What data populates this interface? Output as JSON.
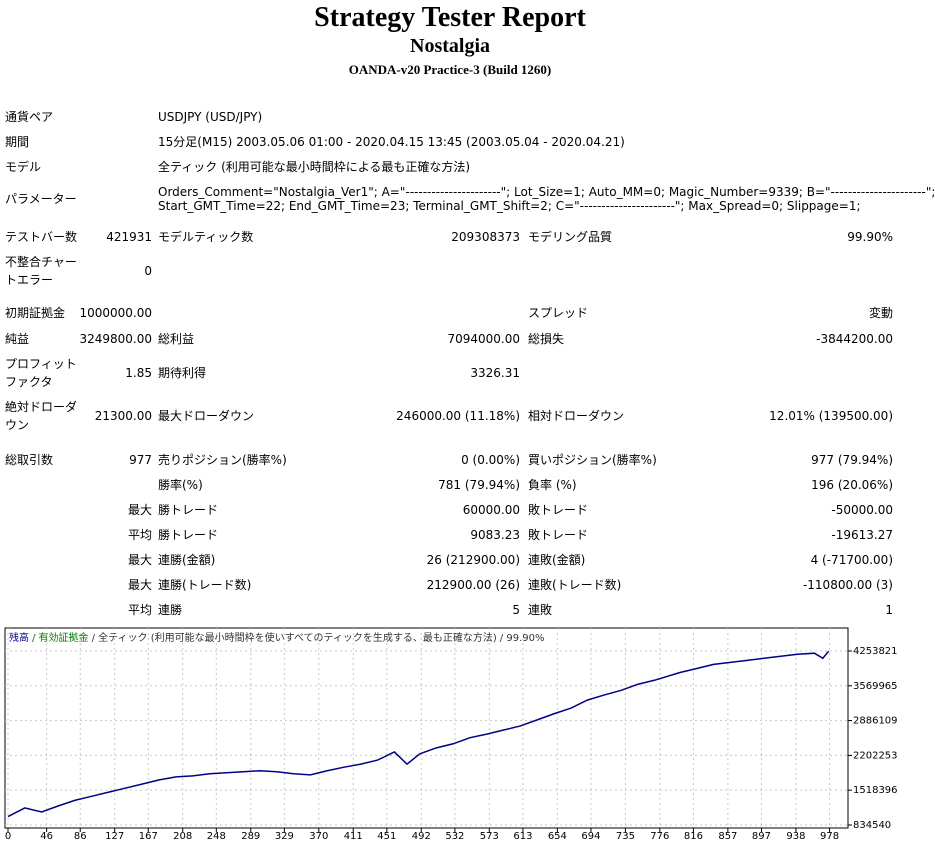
{
  "header": {
    "title": "Strategy Tester Report",
    "subtitle": "Nostalgia",
    "server": "OANDA-v20 Practice-3 (Build 1260)"
  },
  "report": {
    "rows": [
      {
        "label": "通貨ペア",
        "text": [
          "USDJPY (USD/JPY)"
        ]
      },
      {
        "label": "期間",
        "text": [
          "15分足(M15) 2003.05.06 01:00 - 2020.04.15 13:45 (2003.05.04 - 2020.04.21)"
        ]
      },
      {
        "label": "モデル",
        "text": [
          "全ティック (利用可能な最小時間枠による最も正確な方法)"
        ]
      },
      {
        "label": "パラメーター",
        "text": [
          "Orders_Comment=\"Nostalgia_Ver1\"; A=\"----------------------\"; Lot_Size=1; Auto_MM=0; Magic_Number=9339; B=\"----------------------\";",
          "Start_GMT_Time=22; End_GMT_Time=23; Terminal_GMT_Shift=2; C=\"----------------------\"; Max_Spread=0; Slippage=1;"
        ]
      },
      {
        "label": "テストバー数",
        "value": "421931",
        "label2": "モデルティック数",
        "value2": "209308373",
        "label3": "モデリング品質",
        "value3": "99.90%"
      },
      {
        "label": "不整合チャートエラー",
        "value": "0"
      },
      {
        "label": "初期証拠金",
        "value": "1000000.00",
        "label3": "スプレッド",
        "value3": "変動"
      },
      {
        "label": "純益",
        "value": "3249800.00",
        "label2": "総利益",
        "value2": "7094000.00",
        "label3": "総損失",
        "value3": "-3844200.00"
      },
      {
        "label": "プロフィットファクタ",
        "value": "1.85",
        "label2": "期待利得",
        "value2": "3326.31"
      },
      {
        "label": "絶対ドローダウン",
        "value": "21300.00",
        "label2": "最大ドローダウン",
        "value2": "246000.00 (11.18%)",
        "label3": "相対ドローダウン",
        "value3": "12.01% (139500.00)"
      },
      {
        "label": "総取引数",
        "value": "977",
        "label2": "売りポジション(勝率%)",
        "value2": "0 (0.00%)",
        "label3": "買いポジション(勝率%)",
        "value3": "977 (79.94%)"
      },
      {
        "label2": "勝率(%)",
        "value2": "781 (79.94%)",
        "label3": "負率 (%)",
        "value3": "196 (20.06%)"
      },
      {
        "qualifier": "最大",
        "label2": "勝トレード",
        "value2": "60000.00",
        "label3": "敗トレード",
        "value3": "-50000.00"
      },
      {
        "qualifier": "平均",
        "label2": "勝トレード",
        "value2": "9083.23",
        "label3": "敗トレード",
        "value3": "-19613.27"
      },
      {
        "qualifier": "最大",
        "label2": "連勝(金額)",
        "value2": "26 (212900.00)",
        "label3": "連敗(金額)",
        "value3": "4 (-71700.00)"
      },
      {
        "qualifier": "最大",
        "label2": "連勝(トレード数)",
        "value2": "212900.00 (26)",
        "label3": "連敗(トレード数)",
        "value3": "-110800.00 (3)"
      },
      {
        "qualifier": "平均",
        "label2": "連勝",
        "value2": "5",
        "label3": "連敗",
        "value3": "1"
      }
    ]
  },
  "chart_data": {
    "type": "line",
    "legend_text": [
      "/ 有効証拠金",
      "/ 全ティック (利用可能な最小時間枠を使いすべてのティックを生成する、最も正確な方法)",
      "/ 99.90%"
    ],
    "x": [
      0,
      20,
      40,
      60,
      80,
      100,
      120,
      140,
      160,
      180,
      200,
      220,
      240,
      260,
      280,
      300,
      320,
      340,
      360,
      380,
      400,
      420,
      440,
      460,
      475,
      490,
      510,
      530,
      550,
      570,
      590,
      610,
      630,
      650,
      670,
      690,
      710,
      730,
      750,
      770,
      800,
      820,
      840,
      860,
      880,
      900,
      920,
      940,
      960,
      970,
      977
    ],
    "series": [
      {
        "name": "残高",
        "color": "#00008b",
        "values": [
          1000000,
          1170000,
          1090000,
          1210000,
          1320000,
          1400000,
          1480000,
          1560000,
          1640000,
          1720000,
          1780000,
          1800000,
          1840000,
          1860000,
          1880000,
          1900000,
          1880000,
          1840000,
          1820000,
          1900000,
          1970000,
          2030000,
          2110000,
          2270000,
          2030000,
          2230000,
          2350000,
          2430000,
          2550000,
          2620000,
          2700000,
          2780000,
          2900000,
          3020000,
          3130000,
          3290000,
          3390000,
          3480000,
          3600000,
          3680000,
          3830000,
          3910000,
          3990000,
          4030000,
          4070000,
          4110000,
          4150000,
          4190000,
          4210000,
          4110000,
          4249800
        ]
      }
    ],
    "xlim": [
      0,
      1000
    ],
    "ylim": [
      775000,
      4705000
    ],
    "xticks": [
      0,
      46,
      86,
      127,
      167,
      208,
      248,
      289,
      329,
      370,
      411,
      451,
      492,
      532,
      573,
      613,
      654,
      694,
      735,
      776,
      816,
      857,
      897,
      938,
      978
    ],
    "yticks": [
      834540,
      1518396,
      2202253,
      2886109,
      3569965,
      4253821
    ],
    "grid": true,
    "legend_colors": [
      "#008000",
      "#333333",
      "#333333"
    ]
  }
}
